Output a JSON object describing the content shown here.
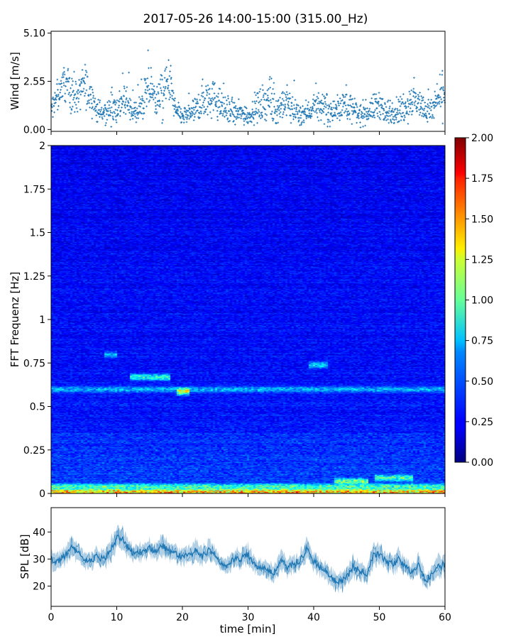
{
  "title": "2017-05-26 14:00-15:00 (315.00_Hz)",
  "chart_data": [
    {
      "type": "scatter",
      "name": "wind",
      "ylabel": "Wind [m/s]",
      "xlim": [
        0,
        60
      ],
      "ylim": [
        -0.1,
        5.2
      ],
      "yticks": [
        0.0,
        2.55,
        5.1
      ],
      "ytick_labels": [
        "0.00",
        "2.55",
        "5.10"
      ],
      "color": "#1f77b4",
      "x": [
        0,
        1,
        2,
        3,
        4,
        5,
        6,
        7,
        8,
        9,
        10,
        11,
        12,
        13,
        14,
        15,
        16,
        17,
        18,
        19,
        20,
        21,
        22,
        23,
        24,
        25,
        26,
        27,
        28,
        29,
        30,
        31,
        32,
        33,
        34,
        35,
        36,
        37,
        38,
        39,
        40,
        41,
        42,
        43,
        44,
        45,
        46,
        47,
        48,
        49,
        50,
        51,
        52,
        53,
        54,
        55,
        56,
        57,
        58,
        59,
        60
      ],
      "y": [
        1.0,
        1.8,
        2.6,
        2.0,
        1.7,
        2.4,
        1.9,
        1.0,
        0.8,
        1.1,
        1.2,
        1.5,
        1.1,
        0.8,
        1.4,
        2.2,
        1.6,
        1.8,
        2.6,
        0.9,
        0.7,
        0.8,
        1.0,
        1.5,
        1.9,
        1.6,
        1.2,
        1.0,
        0.8,
        0.9,
        0.7,
        1.1,
        1.3,
        1.6,
        1.0,
        1.2,
        1.4,
        1.0,
        0.8,
        0.9,
        1.2,
        1.3,
        1.1,
        0.9,
        1.2,
        1.5,
        1.0,
        0.8,
        0.9,
        1.1,
        1.4,
        0.8,
        0.9,
        1.0,
        1.2,
        1.6,
        1.4,
        1.1,
        1.0,
        1.5,
        2.0
      ],
      "y_spread": [
        0.6,
        0.8,
        1.0,
        1.0,
        0.8,
        1.2,
        0.9,
        0.6,
        0.6,
        0.7,
        1.0,
        0.9,
        0.7,
        0.6,
        0.9,
        1.2,
        1.0,
        1.2,
        1.4,
        0.6,
        0.5,
        0.5,
        0.6,
        1.1,
        1.2,
        0.9,
        0.8,
        0.7,
        0.6,
        0.6,
        0.5,
        0.7,
        0.9,
        1.0,
        0.7,
        0.8,
        0.9,
        0.7,
        0.6,
        0.6,
        0.7,
        0.8,
        0.7,
        0.6,
        0.7,
        0.9,
        0.7,
        0.6,
        0.6,
        0.7,
        0.9,
        0.6,
        0.6,
        0.7,
        0.8,
        1.0,
        0.8,
        0.7,
        0.7,
        0.9,
        1.2
      ]
    },
    {
      "type": "heatmap",
      "name": "spectrogram",
      "ylabel": "FFT Frequenz [Hz]",
      "xlim": [
        0,
        60
      ],
      "ylim": [
        0,
        2
      ],
      "yticks": [
        0,
        0.25,
        0.5,
        0.75,
        1,
        1.25,
        1.5,
        1.75,
        2
      ],
      "ytick_labels": [
        "0",
        "0.25",
        "0.5",
        "0.75",
        "1",
        "1.25",
        "1.5",
        "1.75",
        "2"
      ],
      "colorscale": "jet",
      "clim": [
        0,
        2
      ],
      "colorbar_ticks": [
        0.0,
        0.25,
        0.5,
        0.75,
        1.0,
        1.25,
        1.5,
        1.75,
        2.0
      ],
      "colorbar_tick_labels": [
        "0.00",
        "0.25",
        "0.50",
        "0.75",
        "1.00",
        "1.25",
        "1.50",
        "1.75",
        "2.00"
      ],
      "features": [
        {
          "x": [
            0,
            60
          ],
          "freq": 0.01,
          "intensity": 1.7
        },
        {
          "x": [
            0,
            60
          ],
          "freq": 0.04,
          "intensity": 1.1
        },
        {
          "x": [
            0,
            60
          ],
          "freq": 0.6,
          "intensity": 0.75
        },
        {
          "x": [
            8,
            10
          ],
          "freq": 0.8,
          "intensity": 0.75
        },
        {
          "x": [
            12,
            18
          ],
          "freq": 0.67,
          "intensity": 1.0
        },
        {
          "x": [
            19,
            21
          ],
          "freq": 0.59,
          "intensity": 1.5
        },
        {
          "x": [
            39,
            42
          ],
          "freq": 0.74,
          "intensity": 0.85
        },
        {
          "x": [
            43,
            48
          ],
          "freq": 0.07,
          "intensity": 1.2
        },
        {
          "x": [
            49,
            55
          ],
          "freq": 0.09,
          "intensity": 1.1
        }
      ]
    },
    {
      "type": "line",
      "name": "spl",
      "xlabel": "time [min]",
      "ylabel": "SPL [dB]",
      "xlim": [
        0,
        60
      ],
      "ylim": [
        12.5,
        49
      ],
      "xticks": [
        0,
        10,
        20,
        30,
        40,
        50,
        60
      ],
      "xtick_labels": [
        "0",
        "10",
        "20",
        "30",
        "40",
        "50",
        "60"
      ],
      "yticks": [
        20,
        30,
        40
      ],
      "ytick_labels": [
        "20",
        "30",
        "40"
      ],
      "color": "#1f77b4",
      "x": [
        0,
        1,
        2,
        3,
        4,
        5,
        6,
        7,
        8,
        9,
        10,
        11,
        12,
        13,
        14,
        15,
        16,
        17,
        18,
        19,
        20,
        21,
        22,
        23,
        24,
        25,
        26,
        27,
        28,
        29,
        30,
        31,
        32,
        33,
        34,
        35,
        36,
        37,
        38,
        39,
        40,
        41,
        42,
        43,
        44,
        45,
        46,
        47,
        48,
        49,
        50,
        51,
        52,
        53,
        54,
        55,
        56,
        57,
        58,
        59,
        60
      ],
      "y": [
        30,
        29,
        31,
        34,
        33,
        30,
        29,
        31,
        30,
        33,
        38,
        37,
        33,
        32,
        33,
        34,
        33,
        35,
        33,
        32,
        31,
        31,
        33,
        31,
        33,
        31,
        28,
        28,
        30,
        30,
        32,
        28,
        27,
        26,
        25,
        29,
        27,
        28,
        30,
        34,
        29,
        27,
        25,
        22,
        22,
        23,
        27,
        26,
        24,
        31,
        32,
        29,
        28,
        30,
        27,
        25,
        28,
        22,
        24,
        27,
        28
      ],
      "y_spread": [
        3,
        3,
        3,
        4,
        3,
        3,
        3,
        3,
        3,
        4,
        4,
        4,
        3,
        3,
        3,
        3,
        3,
        4,
        3,
        3,
        3,
        3,
        4,
        3,
        4,
        3,
        3,
        3,
        3,
        4,
        4,
        3,
        3,
        3,
        3,
        4,
        3,
        3,
        3,
        4,
        3,
        3,
        3,
        3,
        3,
        3,
        4,
        3,
        3,
        4,
        4,
        3,
        3,
        4,
        3,
        3,
        4,
        3,
        3,
        4,
        4
      ]
    }
  ]
}
